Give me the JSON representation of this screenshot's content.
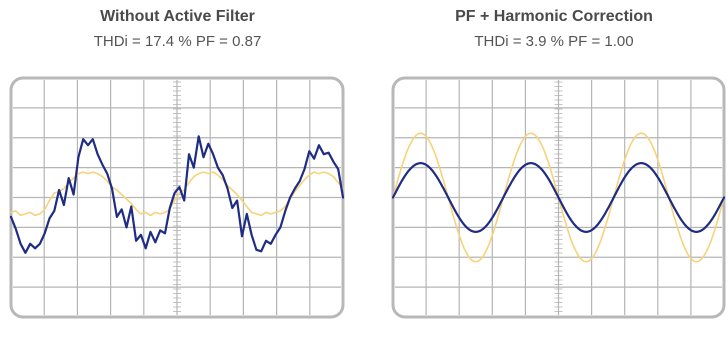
{
  "panels": [
    {
      "title": "Without Active Filter",
      "subtitle": "THDi = 17.4 %  PF = 0.87",
      "waves": {
        "current": [
          -0.65,
          -1.05,
          -1.55,
          -1.85,
          -1.55,
          -1.7,
          -1.55,
          -1.2,
          -0.7,
          -0.45,
          0.25,
          -0.25,
          0.65,
          0.1,
          1.35,
          1.95,
          1.75,
          1.95,
          1.45,
          1.1,
          0.8,
          0.3,
          -0.65,
          -0.4,
          -1.0,
          -0.3,
          -1.45,
          -1.25,
          -1.7,
          -1.15,
          -1.5,
          -1.1,
          -1.2,
          -0.35,
          0.15,
          0.35,
          -0.1,
          1.45,
          1.0,
          2.05,
          1.35,
          1.8,
          1.45,
          1.0,
          0.75,
          0.3,
          -0.35,
          -0.1,
          -1.3,
          -0.55,
          -1.25,
          -1.75,
          -1.8,
          -1.45,
          -1.55,
          -1.25,
          -1.0,
          -0.45,
          0.0,
          0.3,
          0.55,
          0.95,
          1.55,
          1.3,
          1.75,
          1.45,
          1.5,
          1.2,
          0.95,
          0.0
        ],
        "voltage": [
          -0.5,
          -0.45,
          -0.6,
          -0.55,
          -0.5,
          -0.6,
          -0.55,
          -0.4,
          -0.1,
          0.15,
          0.2,
          0.3,
          0.5,
          0.65,
          0.8,
          0.85,
          0.8,
          0.85,
          0.8,
          0.7,
          0.55,
          0.35,
          0.25,
          0.1,
          -0.05,
          -0.2,
          -0.4,
          -0.55,
          -0.5,
          -0.6,
          -0.5,
          -0.55,
          -0.5,
          -0.4,
          -0.1,
          0.15,
          0.25,
          0.5,
          0.7,
          0.8,
          0.85,
          0.8,
          0.85,
          0.75,
          0.6,
          0.4,
          0.25,
          0.1,
          -0.1,
          -0.3,
          -0.5,
          -0.55,
          -0.6,
          -0.5,
          -0.55,
          -0.5,
          -0.45,
          -0.3,
          -0.05,
          0.2,
          0.4,
          0.6,
          0.75,
          0.85,
          0.8,
          0.85,
          0.8,
          0.7,
          0.5,
          0.3
        ]
      }
    },
    {
      "title": "PF + Harmonic Correction",
      "subtitle": "THDi = 3.9 %  PF = 1.00",
      "waves": {
        "cycles": 3,
        "phase_deg": 0,
        "current_amplitude": 1.15,
        "voltage_amplitude": 2.15
      }
    }
  ],
  "colors": {
    "background": "#ffffff",
    "screen": "#ffffff",
    "bezel": "#b8b8b8",
    "grid": "#b5b5b5",
    "current": "#1f2c83",
    "voltage": "#f7d27a"
  }
}
